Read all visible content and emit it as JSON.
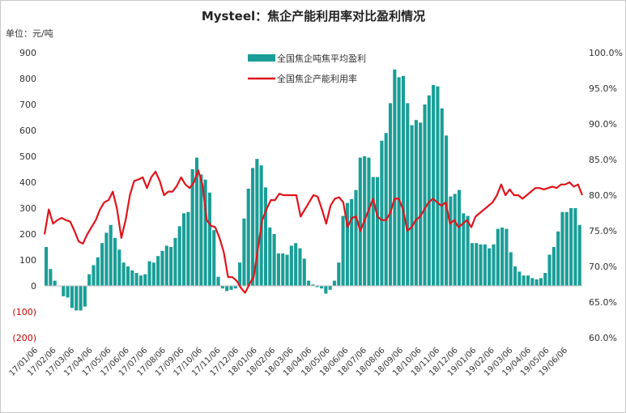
{
  "chart_data": {
    "type": "bar+line",
    "title": "Mysteel：焦企产能利用率对比盈利情况",
    "unit_label": "单位：元/吨",
    "legend": [
      {
        "name": "全国焦企吨焦平均盈利",
        "type": "bar",
        "color": "#1a9e97"
      },
      {
        "name": "全国焦企产能利用率",
        "type": "line",
        "color": "#e0141c"
      }
    ],
    "y_left": {
      "min": -200,
      "max": 900,
      "ticks": [
        {
          "value": 900,
          "label": "900"
        },
        {
          "value": 800,
          "label": "800"
        },
        {
          "value": 700,
          "label": "700"
        },
        {
          "value": 600,
          "label": "600"
        },
        {
          "value": 500,
          "label": "500"
        },
        {
          "value": 400,
          "label": "400"
        },
        {
          "value": 300,
          "label": "300"
        },
        {
          "value": 200,
          "label": "200"
        },
        {
          "value": 100,
          "label": "100"
        },
        {
          "value": 0,
          "label": "0"
        },
        {
          "value": -100,
          "label": "(100)"
        },
        {
          "value": -200,
          "label": "(200)"
        }
      ]
    },
    "y_right": {
      "min": 60,
      "max": 100,
      "ticks": [
        "100.0%",
        "95.0%",
        "90.0%",
        "85.0%",
        "80.0%",
        "75.0%",
        "70.0%",
        "65.0%",
        "60.0%"
      ]
    },
    "x_labels": [
      "17/01/06",
      "17/02/06",
      "17/03/06",
      "17/04/06",
      "17/05/06",
      "17/06/06",
      "17/07/06",
      "17/08/06",
      "17/09/06",
      "17/10/06",
      "17/11/06",
      "17/12/06",
      "18/01/06",
      "18/02/06",
      "18/03/06",
      "18/04/06",
      "18/05/06",
      "18/06/06",
      "18/07/06",
      "18/08/06",
      "18/09/06",
      "18/10/06",
      "18/11/06",
      "18/12/06",
      "19/01/06",
      "19/02/06",
      "19/03/06",
      "19/04/06",
      "19/05/06",
      "19/06/06"
    ],
    "profit": [
      150,
      65,
      20,
      0,
      -40,
      -45,
      -85,
      -95,
      -95,
      -80,
      45,
      80,
      110,
      165,
      205,
      235,
      185,
      140,
      90,
      75,
      60,
      50,
      40,
      45,
      95,
      90,
      115,
      135,
      155,
      150,
      185,
      230,
      280,
      285,
      450,
      495,
      430,
      410,
      360,
      215,
      35,
      -10,
      -20,
      -15,
      -10,
      90,
      260,
      375,
      455,
      490,
      465,
      380,
      225,
      200,
      125,
      125,
      120,
      155,
      165,
      145,
      105,
      20,
      5,
      -5,
      -10,
      -30,
      -15,
      20,
      90,
      270,
      320,
      335,
      370,
      495,
      500,
      495,
      420,
      420,
      560,
      590,
      705,
      835,
      805,
      810,
      705,
      620,
      640,
      630,
      700,
      735,
      775,
      770,
      685,
      580,
      345,
      355,
      370,
      280,
      270,
      165,
      165,
      160,
      160,
      145,
      160,
      220,
      225,
      220,
      130,
      75,
      55,
      40,
      40,
      30,
      25,
      30,
      50,
      120,
      150,
      210,
      285,
      285,
      300,
      300,
      235
    ],
    "utilization": [
      74.5,
      78,
      76,
      76.5,
      76.8,
      76.5,
      76.3,
      75,
      73.5,
      73.2,
      74.5,
      75.5,
      76.5,
      78,
      79,
      79.3,
      80.5,
      78,
      74,
      76.5,
      80,
      82,
      82.2,
      82.5,
      81,
      82.5,
      83.3,
      82,
      80,
      80.5,
      80.5,
      81.3,
      82.5,
      81.5,
      81,
      81.8,
      83.5,
      81.5,
      76.5,
      75.7,
      75.5,
      74,
      72,
      68.5,
      68.5,
      68,
      67,
      66.3,
      67.5,
      68.5,
      72.5,
      76.5,
      78,
      79.3,
      79.3,
      80.2,
      80,
      80,
      80,
      80,
      77,
      78,
      79,
      80,
      79.8,
      78,
      76,
      78.5,
      79.5,
      79.7,
      79,
      75.5,
      76.8,
      77,
      75,
      76.5,
      78,
      79.5,
      77,
      76.5,
      76.5,
      77.5,
      79.5,
      79.5,
      78,
      75,
      75.5,
      76.5,
      77,
      78,
      79,
      79.5,
      79,
      78.5,
      79,
      76,
      76.5,
      75.5,
      76,
      76.5,
      75.5,
      77,
      77.5,
      78,
      78.5,
      79,
      80,
      81.5,
      80,
      80.8,
      80,
      80,
      79.5,
      80,
      80.5,
      81,
      81,
      80.8,
      81,
      81.2,
      81,
      81.5,
      81.5,
      81.8,
      81.2,
      81.5,
      80
    ]
  }
}
